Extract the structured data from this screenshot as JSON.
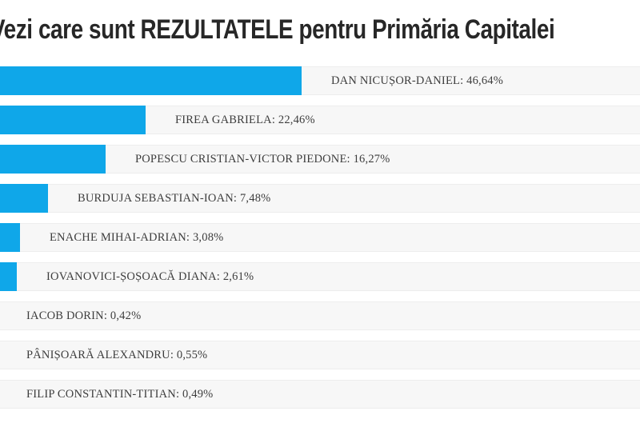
{
  "title": "Vezi care sunt REZULTATELE pentru Primăria Capitalei",
  "colors": {
    "bar": "#0fa7e9",
    "track": "#f7f7f7",
    "track_border": "#ededed",
    "label": "#3d3d3d",
    "title": "#272727"
  },
  "chart_data": {
    "type": "bar",
    "orientation": "horizontal",
    "title": "Vezi care sunt REZULTATELE pentru Primăria Capitalei",
    "unit": "%",
    "decimal_separator": ",",
    "xlim": [
      0,
      100
    ],
    "grid": false,
    "legend": false,
    "min_rendered_value_pct": 1,
    "categories": [
      "DAN NICUȘOR-DANIEL",
      "FIREA GABRIELA",
      "POPESCU CRISTIAN-VICTOR PIEDONE",
      "BURDUJA SEBASTIAN-IOAN",
      "ENACHE MIHAI-ADRIAN",
      "IOVANOVICI-ȘOȘOACĂ DIANA",
      "IACOB DORIN",
      "PÂNIȘOARĂ ALEXANDRU",
      "FILIP CONSTANTIN-TITIAN"
    ],
    "values": [
      46.64,
      22.46,
      16.27,
      7.48,
      3.08,
      2.61,
      0.42,
      0.55,
      0.49
    ],
    "bars": [
      {
        "name": "DAN NICUȘOR-DANIEL",
        "value": 46.64,
        "label": "DAN NICUȘOR-DANIEL: 46,64%"
      },
      {
        "name": "FIREA GABRIELA",
        "value": 22.46,
        "label": "FIREA GABRIELA: 22,46%"
      },
      {
        "name": "POPESCU CRISTIAN-VICTOR PIEDONE",
        "value": 16.27,
        "label": "POPESCU CRISTIAN-VICTOR PIEDONE: 16,27%"
      },
      {
        "name": "BURDUJA SEBASTIAN-IOAN",
        "value": 7.48,
        "label": "BURDUJA SEBASTIAN-IOAN: 7,48%"
      },
      {
        "name": "ENACHE MIHAI-ADRIAN",
        "value": 3.08,
        "label": "ENACHE MIHAI-ADRIAN: 3,08%"
      },
      {
        "name": "IOVANOVICI-ȘOȘOACĂ DIANA",
        "value": 2.61,
        "label": "IOVANOVICI-ȘOȘOACĂ DIANA: 2,61%"
      },
      {
        "name": "IACOB DORIN",
        "value": 0.42,
        "label": "IACOB DORIN: 0,42%"
      },
      {
        "name": "PÂNIȘOARĂ ALEXANDRU",
        "value": 0.55,
        "label": "PÂNIȘOARĂ ALEXANDRU: 0,55%"
      },
      {
        "name": "FILIP CONSTANTIN-TITIAN",
        "value": 0.49,
        "label": "FILIP CONSTANTIN-TITIAN: 0,49%"
      }
    ]
  }
}
